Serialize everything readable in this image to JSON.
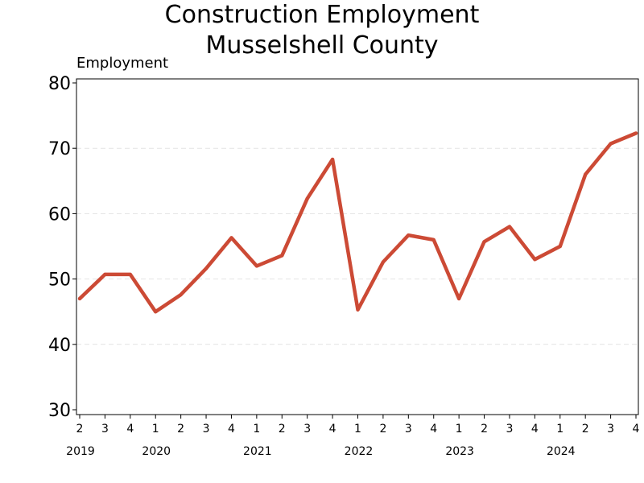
{
  "chart_data": {
    "type": "line",
    "title": [
      "Construction Employment",
      "Musselshell County"
    ],
    "ylabel": "Employment",
    "xlabel": "",
    "ylim": [
      30,
      80
    ],
    "yticks": [
      30,
      40,
      50,
      60,
      70,
      80
    ],
    "grid": "horizontal dashed",
    "line_color": "#cc4a35",
    "quarters": [
      "2",
      "3",
      "4",
      "1",
      "2",
      "3",
      "4",
      "1",
      "2",
      "3",
      "4",
      "1",
      "2",
      "3",
      "4",
      "1",
      "2",
      "3",
      "4",
      "1",
      "2",
      "3",
      "4"
    ],
    "years": [
      {
        "label": "2019",
        "start_index": 0
      },
      {
        "label": "2020",
        "start_index": 3
      },
      {
        "label": "2021",
        "start_index": 7
      },
      {
        "label": "2022",
        "start_index": 11
      },
      {
        "label": "2023",
        "start_index": 15
      },
      {
        "label": "2024",
        "start_index": 19
      }
    ],
    "series": [
      {
        "values": [
          47.0,
          50.7,
          50.7,
          45.0,
          47.6,
          51.6,
          56.3,
          52.0,
          53.6,
          62.3,
          68.3,
          45.3,
          52.6,
          56.7,
          56.0,
          47.0,
          55.7,
          58.0,
          53.0,
          55.0,
          66.0,
          70.7,
          72.3
        ]
      }
    ]
  }
}
